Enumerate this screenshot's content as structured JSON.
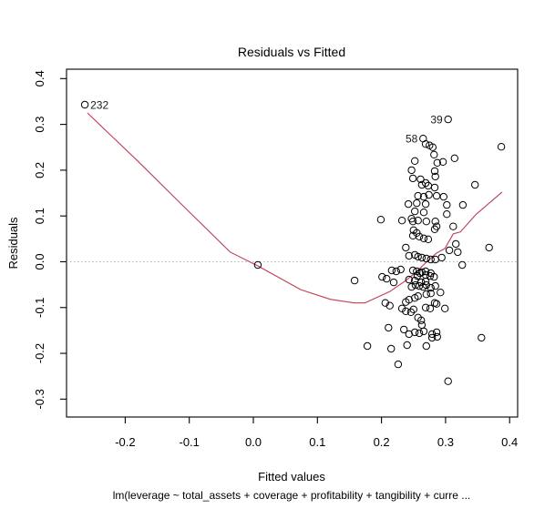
{
  "figure": {
    "title": "Residuals vs Fitted",
    "xlabel": "Fitted values",
    "ylabel": "Residuals",
    "subtitle": "lm(leverage ~ total_assets + coverage + profitability + tangibility + curre ..."
  },
  "chart_data": {
    "type": "scatter",
    "title": "Residuals vs Fitted",
    "xlabel": "Fitted values",
    "ylabel": "Residuals",
    "subtitle": "lm(leverage ~ total_assets + coverage + profitability + tangibility + curre ...",
    "xlim": [
      -0.2916,
      0.4125
    ],
    "ylim": [
      -0.3391,
      0.4205
    ],
    "grid": false,
    "x_ticks": [
      -0.2,
      -0.1,
      0.0,
      0.1,
      0.2,
      0.3,
      0.4
    ],
    "x_tick_labels": [
      "-0.2",
      "-0.1",
      "0.0",
      "0.1",
      "0.2",
      "0.3",
      "0.4"
    ],
    "y_ticks": [
      -0.3,
      -0.2,
      -0.1,
      0.0,
      0.1,
      0.2,
      0.3,
      0.4
    ],
    "y_tick_labels": [
      "-0.3",
      "-0.2",
      "-0.1",
      "0.0",
      "0.1",
      "0.2",
      "0.3",
      "0.4"
    ],
    "zero_reference_line": 0.0,
    "colors": {
      "smooth_line": "#c03d55",
      "zero_line": "#b3b3b3",
      "point_stroke": "#000000",
      "border": "#000000"
    },
    "labeled_points": [
      {
        "label": "232",
        "x": -0.263,
        "y": 0.343,
        "side": "right"
      },
      {
        "label": "39",
        "x": 0.304,
        "y": 0.311,
        "side": "left"
      },
      {
        "label": "58",
        "x": 0.265,
        "y": 0.269,
        "side": "left"
      }
    ],
    "smooth_line": [
      [
        -0.259,
        0.325
      ],
      [
        -0.182,
        0.222
      ],
      [
        -0.111,
        0.124
      ],
      [
        -0.036,
        0.021
      ],
      [
        0.007,
        -0.009
      ],
      [
        0.074,
        -0.061
      ],
      [
        0.12,
        -0.082
      ],
      [
        0.158,
        -0.09
      ],
      [
        0.174,
        -0.09
      ],
      [
        0.213,
        -0.065
      ],
      [
        0.238,
        -0.041
      ],
      [
        0.252,
        -0.025
      ],
      [
        0.27,
        -0.001
      ],
      [
        0.285,
        0.018
      ],
      [
        0.299,
        0.029
      ],
      [
        0.312,
        0.061
      ],
      [
        0.323,
        0.065
      ],
      [
        0.348,
        0.104
      ],
      [
        0.388,
        0.152
      ]
    ],
    "points": [
      [
        -0.263,
        0.343
      ],
      [
        0.304,
        0.311
      ],
      [
        0.265,
        0.269
      ],
      [
        0.269,
        0.257
      ],
      [
        0.275,
        0.254
      ],
      [
        0.28,
        0.25
      ],
      [
        0.387,
        0.251
      ],
      [
        0.282,
        0.234
      ],
      [
        0.314,
        0.226
      ],
      [
        0.252,
        0.22
      ],
      [
        0.287,
        0.216
      ],
      [
        0.296,
        0.218
      ],
      [
        0.247,
        0.2
      ],
      [
        0.249,
        0.182
      ],
      [
        0.283,
        0.198
      ],
      [
        0.261,
        0.18
      ],
      [
        0.269,
        0.172
      ],
      [
        0.273,
        0.166
      ],
      [
        0.346,
        0.168
      ],
      [
        0.284,
        0.186
      ],
      [
        0.263,
        0.168
      ],
      [
        0.283,
        0.162
      ],
      [
        0.257,
        0.144
      ],
      [
        0.266,
        0.142
      ],
      [
        0.274,
        0.146
      ],
      [
        0.286,
        0.144
      ],
      [
        0.297,
        0.142
      ],
      [
        0.242,
        0.126
      ],
      [
        0.255,
        0.128
      ],
      [
        0.269,
        0.126
      ],
      [
        0.302,
        0.124
      ],
      [
        0.327,
        0.124
      ],
      [
        0.252,
        0.11
      ],
      [
        0.266,
        0.108
      ],
      [
        0.302,
        0.104
      ],
      [
        0.232,
        0.09
      ],
      [
        0.199,
        0.092
      ],
      [
        0.247,
        0.094
      ],
      [
        0.249,
        0.088
      ],
      [
        0.257,
        0.09
      ],
      [
        0.27,
        0.088
      ],
      [
        0.284,
        0.088
      ],
      [
        0.283,
        0.071
      ],
      [
        0.286,
        0.077
      ],
      [
        0.25,
        0.069
      ],
      [
        0.255,
        0.063
      ],
      [
        0.249,
        0.057
      ],
      [
        0.259,
        0.055
      ],
      [
        0.266,
        0.051
      ],
      [
        0.273,
        0.049
      ],
      [
        0.312,
        0.077
      ],
      [
        0.316,
        0.039
      ],
      [
        0.306,
        0.025
      ],
      [
        0.319,
        0.021
      ],
      [
        0.368,
        0.031
      ],
      [
        0.238,
        0.031
      ],
      [
        0.243,
        0.013
      ],
      [
        0.252,
        0.015
      ],
      [
        0.257,
        0.011
      ],
      [
        0.263,
        0.009
      ],
      [
        0.27,
        0.007
      ],
      [
        0.277,
        0.005
      ],
      [
        0.284,
        0.005
      ],
      [
        0.294,
        0.009
      ],
      [
        0.216,
        -0.019
      ],
      [
        0.223,
        -0.021
      ],
      [
        0.23,
        -0.017
      ],
      [
        0.249,
        -0.019
      ],
      [
        0.255,
        -0.021
      ],
      [
        0.263,
        -0.023
      ],
      [
        0.269,
        -0.021
      ],
      [
        0.277,
        -0.025
      ],
      [
        0.326,
        -0.007
      ],
      [
        0.208,
        -0.037
      ],
      [
        0.219,
        -0.045
      ],
      [
        0.243,
        -0.039
      ],
      [
        0.252,
        -0.041
      ],
      [
        0.262,
        -0.045
      ],
      [
        0.269,
        -0.043
      ],
      [
        0.007,
        -0.007
      ],
      [
        0.158,
        -0.041
      ],
      [
        0.201,
        -0.033
      ],
      [
        0.256,
        -0.031
      ],
      [
        0.269,
        -0.029
      ],
      [
        0.276,
        -0.031
      ],
      [
        0.282,
        -0.033
      ],
      [
        0.26,
        -0.025
      ],
      [
        0.247,
        -0.055
      ],
      [
        0.253,
        -0.051
      ],
      [
        0.259,
        -0.053
      ],
      [
        0.265,
        -0.055
      ],
      [
        0.27,
        -0.051
      ],
      [
        0.277,
        -0.057
      ],
      [
        0.284,
        -0.053
      ],
      [
        0.292,
        -0.067
      ],
      [
        0.277,
        -0.069
      ],
      [
        0.27,
        -0.071
      ],
      [
        0.257,
        -0.075
      ],
      [
        0.252,
        -0.079
      ],
      [
        0.243,
        -0.083
      ],
      [
        0.238,
        -0.088
      ],
      [
        0.206,
        -0.09
      ],
      [
        0.213,
        -0.096
      ],
      [
        0.232,
        -0.102
      ],
      [
        0.238,
        -0.108
      ],
      [
        0.246,
        -0.11
      ],
      [
        0.25,
        -0.104
      ],
      [
        0.269,
        -0.1
      ],
      [
        0.276,
        -0.102
      ],
      [
        0.283,
        -0.09
      ],
      [
        0.286,
        -0.092
      ],
      [
        0.299,
        -0.102
      ],
      [
        0.257,
        -0.122
      ],
      [
        0.262,
        -0.128
      ],
      [
        0.263,
        -0.138
      ],
      [
        0.211,
        -0.144
      ],
      [
        0.235,
        -0.148
      ],
      [
        0.243,
        -0.158
      ],
      [
        0.252,
        -0.154
      ],
      [
        0.259,
        -0.156
      ],
      [
        0.266,
        -0.152
      ],
      [
        0.279,
        -0.158
      ],
      [
        0.286,
        -0.154
      ],
      [
        0.287,
        -0.164
      ],
      [
        0.279,
        -0.166
      ],
      [
        0.356,
        -0.166
      ],
      [
        0.178,
        -0.184
      ],
      [
        0.215,
        -0.19
      ],
      [
        0.24,
        -0.182
      ],
      [
        0.27,
        -0.184
      ],
      [
        0.226,
        -0.224
      ],
      [
        0.304,
        -0.261
      ]
    ]
  }
}
